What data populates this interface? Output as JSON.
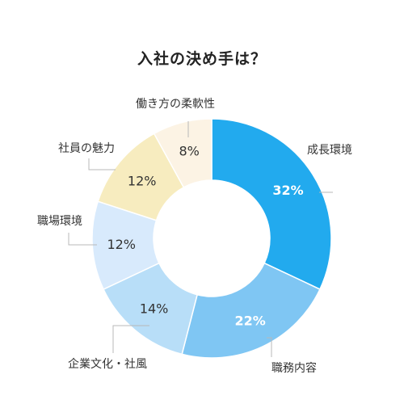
{
  "chart_data": {
    "type": "pie",
    "title": "入社の決め手は？",
    "donut": true,
    "slices": [
      {
        "category": "成長環境",
        "value": 32,
        "label": "32%",
        "color": "#22aaee",
        "label_color": "#ffffff",
        "label_bold": true
      },
      {
        "category": "職務内容",
        "value": 22,
        "label": "22%",
        "color": "#7fc6f3",
        "label_color": "#ffffff",
        "label_bold": true
      },
      {
        "category": "企業文化・社風",
        "value": 14,
        "label": "14%",
        "color": "#b8def8",
        "label_color": "#333333",
        "label_bold": false
      },
      {
        "category": "職場環境",
        "value": 12,
        "label": "12%",
        "color": "#d8eafc",
        "label_color": "#333333",
        "label_bold": false
      },
      {
        "category": "社員の魅力",
        "value": 12,
        "label": "12%",
        "color": "#f7ecbf",
        "label_color": "#333333",
        "label_bold": false
      },
      {
        "category": "働き方の柔軟性",
        "value": 8,
        "label": "8%",
        "color": "#fcf3e4",
        "label_color": "#333333",
        "label_bold": false
      }
    ]
  }
}
